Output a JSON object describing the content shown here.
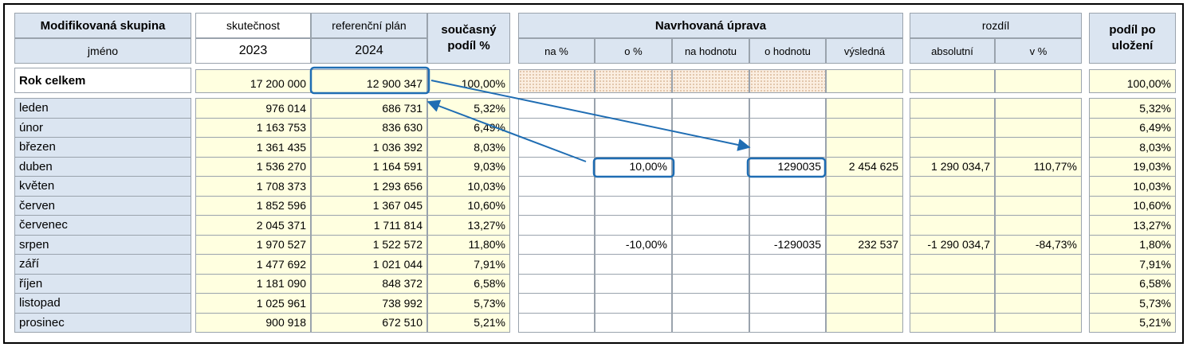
{
  "header": {
    "group_label": "Modifikovaná skupina",
    "name_label": "jméno",
    "actual_label": "skutečnost",
    "actual_year": "2023",
    "plan_label": "referenční plán",
    "plan_year": "2024",
    "share_label": "současný podíl %",
    "adjust_label": "Navrhovaná úprava",
    "adjust_columns": [
      "na %",
      "o %",
      "na hodnotu",
      "o hodnotu",
      "výsledná"
    ],
    "diff_label": "rozdíl",
    "diff_columns": [
      "absolutní",
      "v %"
    ],
    "final_label": "podíl po uložení"
  },
  "total": {
    "name": "Rok celkem",
    "actual": "17 200 000",
    "plan": "12 900 347",
    "share": "100,00%",
    "final": "100,00%"
  },
  "rows": [
    {
      "name": "leden",
      "actual": "976 014",
      "plan": "686 731",
      "share": "5,32%",
      "final": "5,32%"
    },
    {
      "name": "únor",
      "actual": "1 163 753",
      "plan": "836 630",
      "share": "6,49%",
      "final": "6,49%"
    },
    {
      "name": "březen",
      "actual": "1 361 435",
      "plan": "1 036 392",
      "share": "8,03%",
      "final": "8,03%"
    },
    {
      "name": "duben",
      "actual": "1 536 270",
      "plan": "1 164 591",
      "share": "9,03%",
      "o_pct": "10,00%",
      "o_value": "1290035",
      "result": "2 454 625",
      "diff_abs": "1 290 034,7",
      "diff_pct": "110,77%",
      "final": "19,03%"
    },
    {
      "name": "květen",
      "actual": "1 708 373",
      "plan": "1 293 656",
      "share": "10,03%",
      "final": "10,03%"
    },
    {
      "name": "červen",
      "actual": "1 852 596",
      "plan": "1 367 045",
      "share": "10,60%",
      "final": "10,60%"
    },
    {
      "name": "červenec",
      "actual": "2 045 371",
      "plan": "1 711 814",
      "share": "13,27%",
      "final": "13,27%"
    },
    {
      "name": "srpen",
      "actual": "1 970 527",
      "plan": "1 522 572",
      "share": "11,80%",
      "o_pct": "-10,00%",
      "o_value": "-1290035",
      "result": "232 537",
      "diff_abs": "-1 290 034,7",
      "diff_pct": "-84,73%",
      "final": "1,80%"
    },
    {
      "name": "září",
      "actual": "1 477 692",
      "plan": "1 021 044",
      "share": "7,91%",
      "final": "7,91%"
    },
    {
      "name": "říjen",
      "actual": "1 181 090",
      "plan": "848 372",
      "share": "6,58%",
      "final": "6,58%"
    },
    {
      "name": "listopad",
      "actual": "1 025 961",
      "plan": "738 992",
      "share": "5,73%",
      "final": "5,73%"
    },
    {
      "name": "prosinec",
      "actual": "900 918",
      "plan": "672 510",
      "share": "5,21%",
      "final": "5,21%"
    }
  ]
}
